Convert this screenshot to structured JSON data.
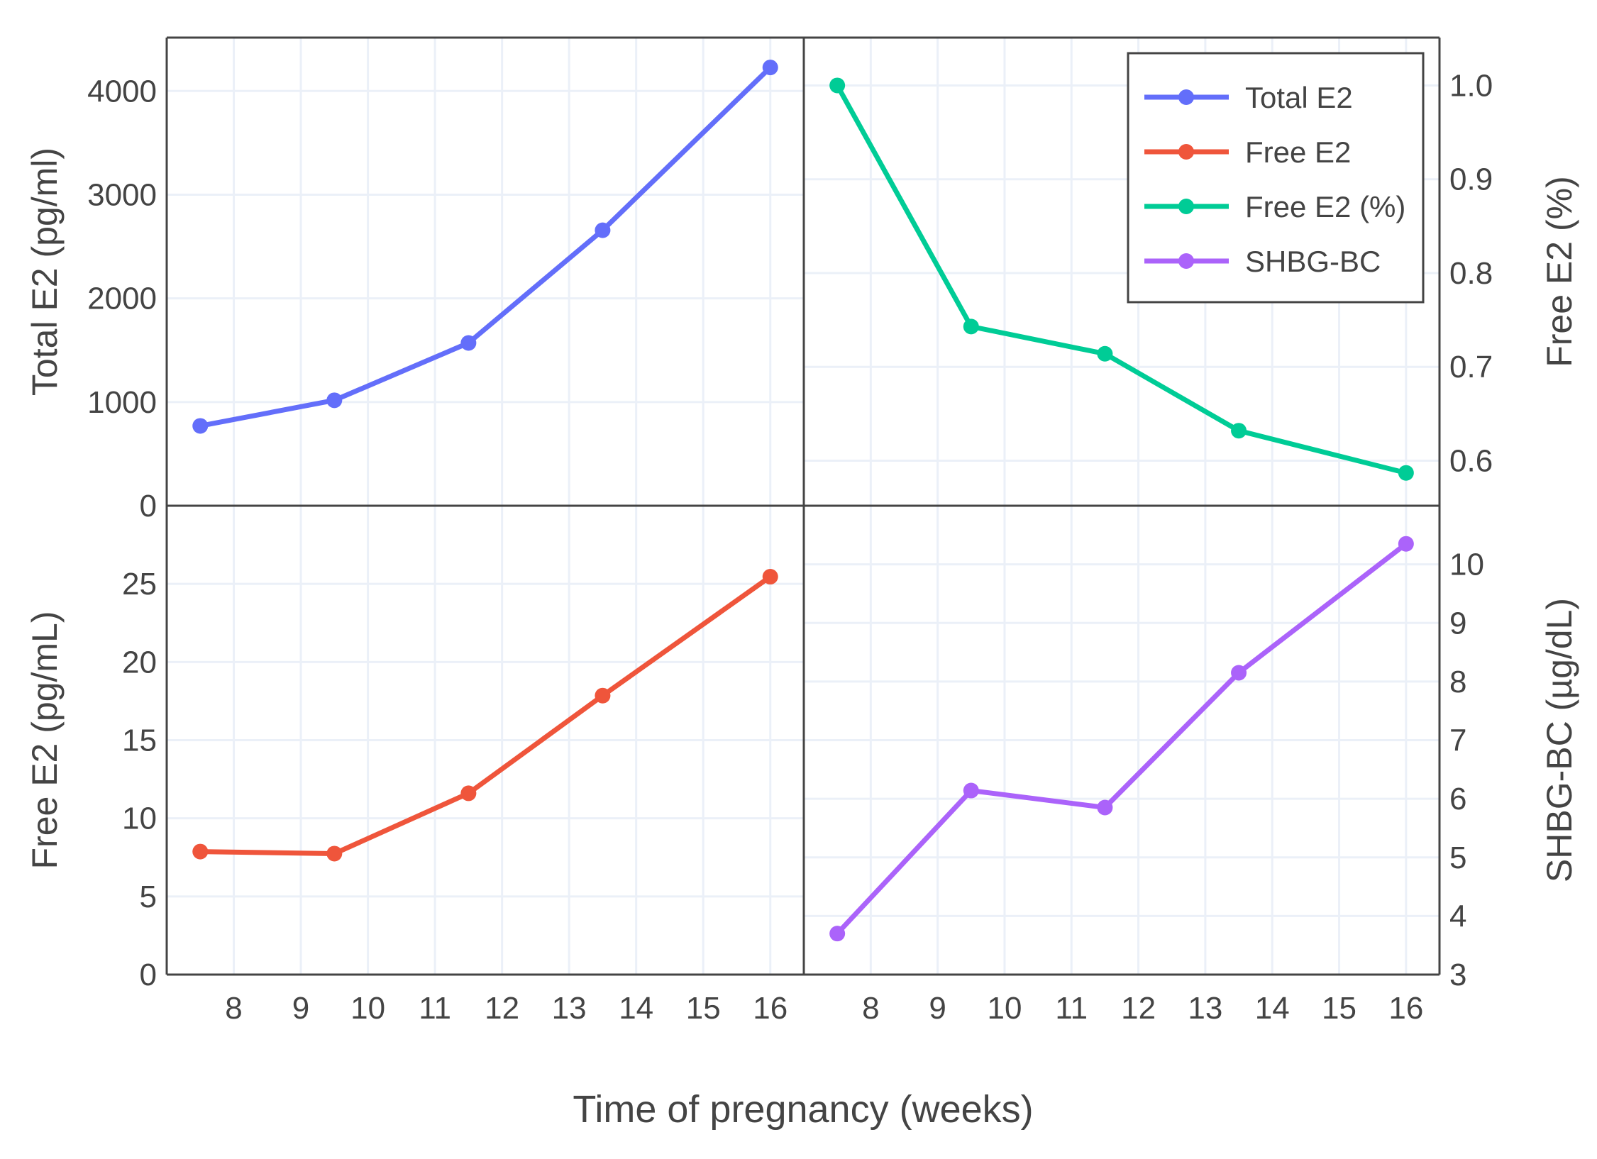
{
  "chart_data": [
    {
      "type": "line",
      "panel": "top-left",
      "ylabel": "Total E2 (pg/ml)",
      "xlim": [
        7,
        16.5
      ],
      "ylim": [
        0,
        4515
      ],
      "yticks": [
        0,
        1000,
        2000,
        3000,
        4000
      ],
      "yaxis_side": "left",
      "series": [
        {
          "name": "Total E2",
          "color": "#636efa",
          "x": [
            7.5,
            9.5,
            11.5,
            13.5,
            16
          ],
          "y": [
            770,
            1017,
            1570,
            2657,
            4227
          ]
        }
      ]
    },
    {
      "type": "line",
      "panel": "top-right",
      "ylabel": "Free E2 (%)",
      "xlim": [
        7,
        16.5
      ],
      "ylim": [
        0.552,
        1.051
      ],
      "yticks": [
        0.6,
        0.7,
        0.8,
        0.9,
        1.0
      ],
      "ytick_labels": [
        "0.6",
        "0.7",
        "0.8",
        "0.9",
        "1.0"
      ],
      "yaxis_side": "right",
      "series": [
        {
          "name": "Free E2 (%)",
          "color": "#00cc96",
          "x": [
            7.5,
            9.5,
            11.5,
            13.5,
            16
          ],
          "y": [
            1.0,
            0.743,
            0.714,
            0.632,
            0.587
          ]
        }
      ]
    },
    {
      "type": "line",
      "panel": "bottom-left",
      "ylabel": "Free E2 (pg/mL)",
      "xlim": [
        7,
        16.5
      ],
      "ylim": [
        0,
        30
      ],
      "yticks": [
        0,
        5,
        10,
        15,
        20,
        25
      ],
      "yaxis_side": "left",
      "xticks": [
        8,
        9,
        10,
        11,
        12,
        13,
        14,
        15,
        16
      ],
      "series": [
        {
          "name": "Free E2",
          "color": "#EF553B",
          "x": [
            7.5,
            9.5,
            11.5,
            13.5,
            16
          ],
          "y": [
            7.87,
            7.74,
            11.6,
            17.85,
            25.46
          ]
        }
      ]
    },
    {
      "type": "line",
      "panel": "bottom-right",
      "ylabel": "SHBG-BC (µg/dL)",
      "xlim": [
        7,
        16.5
      ],
      "ylim": [
        3,
        11
      ],
      "yticks": [
        3,
        4,
        5,
        6,
        7,
        8,
        9,
        10
      ],
      "yaxis_side": "right",
      "xticks": [
        8,
        9,
        10,
        11,
        12,
        13,
        14,
        15,
        16
      ],
      "series": [
        {
          "name": "SHBG-BC",
          "color": "#ab63fa",
          "x": [
            7.5,
            9.5,
            11.5,
            13.5,
            16
          ],
          "y": [
            3.7,
            6.14,
            5.85,
            8.15,
            10.35
          ]
        }
      ]
    }
  ],
  "xlabel": "Time of pregnancy (weeks)",
  "grid": true,
  "legend": {
    "placement": "top-right",
    "entries": [
      {
        "label": "Total E2",
        "color": "#636efa"
      },
      {
        "label": "Free E2",
        "color": "#EF553B"
      },
      {
        "label": "Free E2 (%)",
        "color": "#00cc96"
      },
      {
        "label": "SHBG-BC",
        "color": "#ab63fa"
      }
    ]
  }
}
